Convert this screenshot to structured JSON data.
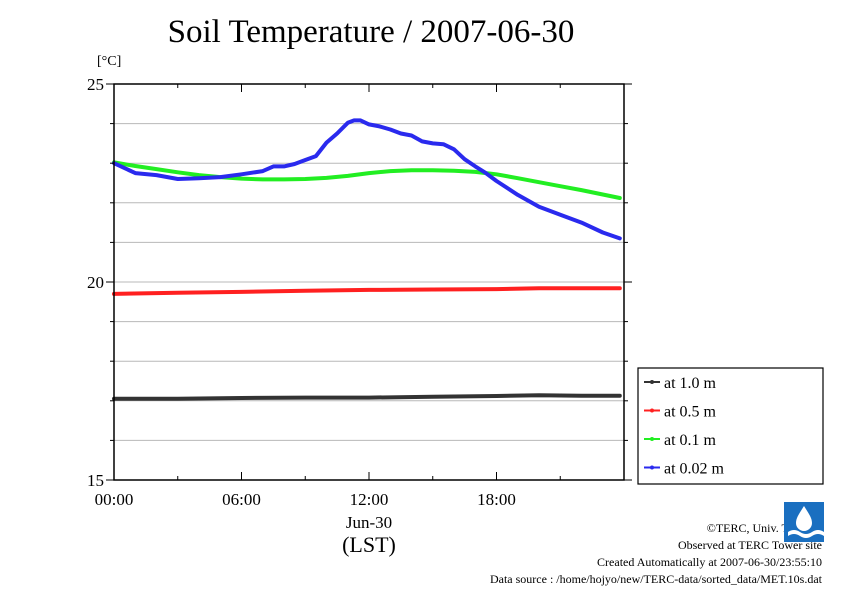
{
  "chart_data": {
    "type": "line",
    "title": "Soil Temperature / 2007-06-30",
    "unit_label": "[°C]",
    "ylim": [
      15,
      25
    ],
    "y_ticks": [
      15,
      20,
      25
    ],
    "x_range_hours": [
      0,
      24
    ],
    "x_ticks": [
      {
        "hour": 0,
        "label": "00:00"
      },
      {
        "hour": 6,
        "label": "06:00"
      },
      {
        "hour": 12,
        "label": "12:00"
      },
      {
        "hour": 18,
        "label": "18:00"
      }
    ],
    "x_date_label": "Jun-30",
    "x_axis_label": "(LST)",
    "grid": true,
    "legend_position": "right",
    "series": [
      {
        "name": "at 1.0 m",
        "color": "#333333",
        "x": [
          0,
          3,
          6,
          9,
          12,
          15,
          18,
          20,
          22,
          23.8
        ],
        "y": [
          17.05,
          17.05,
          17.07,
          17.08,
          17.08,
          17.1,
          17.12,
          17.14,
          17.13,
          17.13
        ]
      },
      {
        "name": "at 0.5 m",
        "color": "#ff2020",
        "x": [
          0,
          3,
          6,
          9,
          12,
          15,
          18,
          20,
          22,
          23.8
        ],
        "y": [
          19.7,
          19.73,
          19.75,
          19.78,
          19.8,
          19.81,
          19.82,
          19.84,
          19.84,
          19.84
        ]
      },
      {
        "name": "at 0.1 m",
        "color": "#22ee22",
        "x": [
          0,
          1,
          2,
          3,
          4,
          5,
          6,
          7,
          8,
          9,
          10,
          11,
          12,
          13,
          14,
          15,
          16,
          17,
          18,
          19,
          20,
          21,
          22,
          23,
          23.8
        ],
        "y": [
          23.02,
          22.93,
          22.85,
          22.77,
          22.7,
          22.65,
          22.61,
          22.59,
          22.59,
          22.6,
          22.63,
          22.68,
          22.75,
          22.8,
          22.82,
          22.82,
          22.81,
          22.78,
          22.72,
          22.62,
          22.52,
          22.42,
          22.32,
          22.21,
          22.12
        ]
      },
      {
        "name": "at 0.02 m",
        "color": "#2a2aee",
        "x": [
          0,
          1,
          2,
          3,
          4,
          5,
          6,
          7,
          7.5,
          8,
          8.5,
          9,
          9.5,
          10,
          10.5,
          11,
          11.3,
          11.6,
          12,
          12.5,
          13,
          13.5,
          14,
          14.5,
          15,
          15.5,
          16,
          16.5,
          17,
          17.5,
          18,
          19,
          20,
          21,
          22,
          23,
          23.8
        ],
        "y": [
          23.0,
          22.75,
          22.7,
          22.6,
          22.62,
          22.65,
          22.72,
          22.8,
          22.92,
          22.92,
          22.98,
          23.08,
          23.18,
          23.52,
          23.75,
          24.02,
          24.08,
          24.08,
          23.98,
          23.93,
          23.85,
          23.75,
          23.7,
          23.55,
          23.5,
          23.48,
          23.35,
          23.1,
          22.92,
          22.75,
          22.55,
          22.2,
          21.9,
          21.7,
          21.5,
          21.25,
          21.1
        ]
      }
    ]
  },
  "credits": {
    "copyright": "©TERC, Univ. Tsukuba",
    "observed": "Observed at TERC Tower site",
    "created": "Created Automatically at 2007-06-30/23:55:10",
    "source": "Data source : /home/hojyo/new/TERC-data/sorted_data/MET.10s.dat"
  }
}
